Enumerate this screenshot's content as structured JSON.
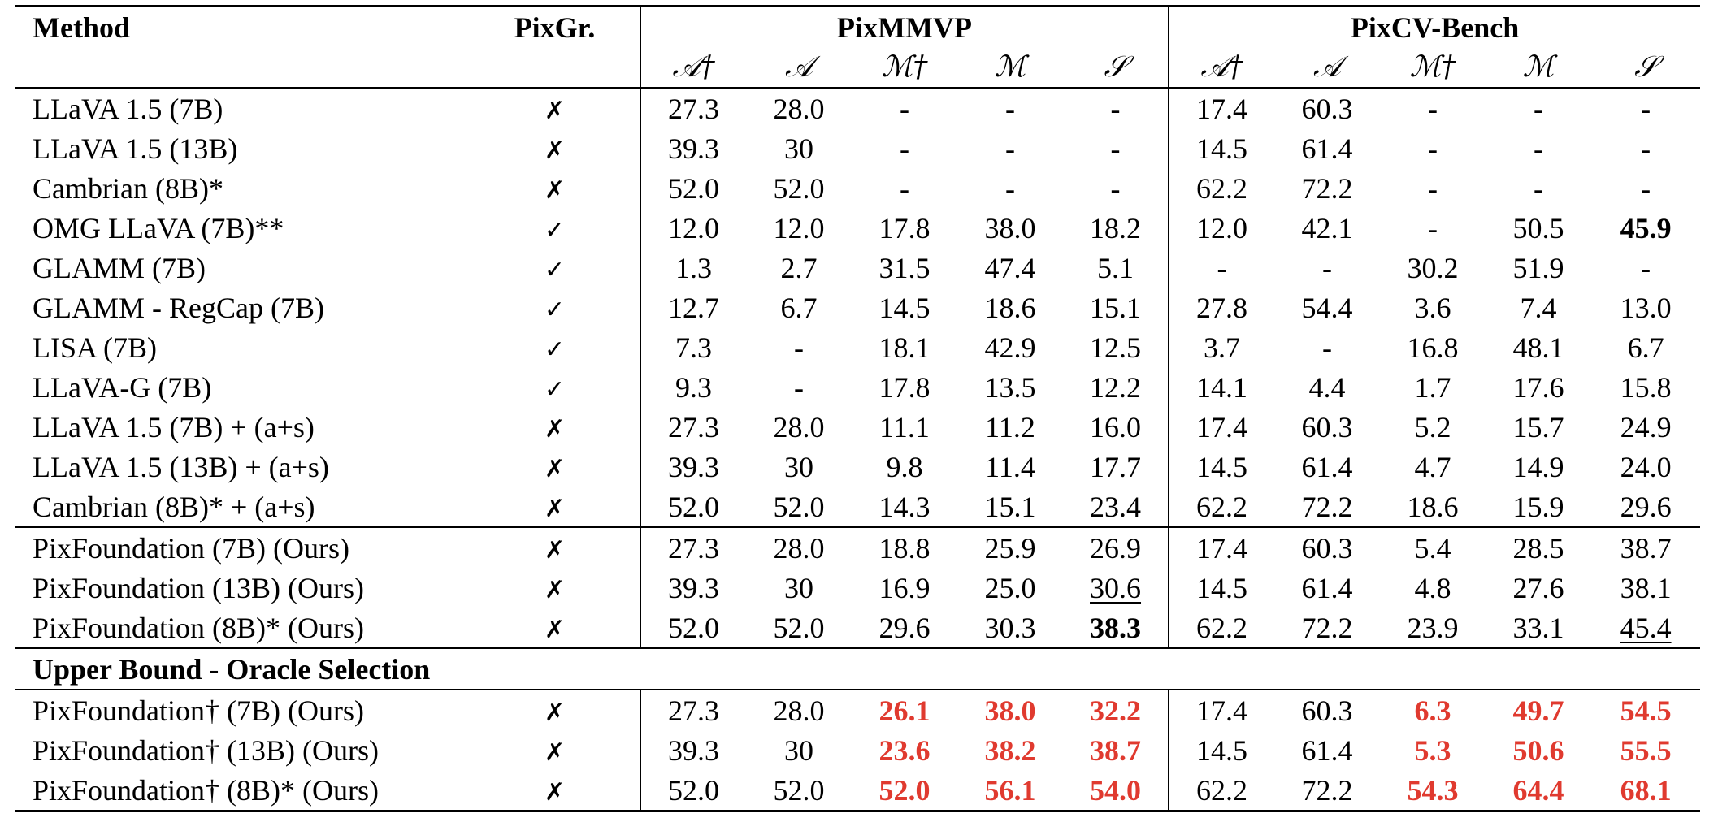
{
  "table": {
    "headers": {
      "method": "Method",
      "pixgr": "PixGr.",
      "group1": "PixMMVP",
      "group2": "PixCV-Bench",
      "metrics": [
        "𝒜†",
        "𝒜",
        "ℳ†",
        "ℳ",
        "𝒮"
      ]
    },
    "rows_main": [
      {
        "method": "LLaVA 1.5 (7B)",
        "pixgr": "✗",
        "v": [
          "27.3",
          "28.0",
          "-",
          "-",
          "-",
          "17.4",
          "60.3",
          "-",
          "-",
          "-"
        ]
      },
      {
        "method": "LLaVA 1.5 (13B)",
        "pixgr": "✗",
        "v": [
          "39.3",
          "30",
          "-",
          "-",
          "-",
          "14.5",
          "61.4",
          "-",
          "-",
          "-"
        ]
      },
      {
        "method": "Cambrian (8B)*",
        "pixgr": "✗",
        "v": [
          "52.0",
          "52.0",
          "-",
          "-",
          "-",
          "62.2",
          "72.2",
          "-",
          "-",
          "-"
        ]
      },
      {
        "method": "OMG LLaVA (7B)**",
        "pixgr": "✓",
        "v": [
          "12.0",
          "12.0",
          "17.8",
          "38.0",
          "18.2",
          "12.0",
          "42.1",
          "-",
          "50.5",
          "45.9"
        ]
      },
      {
        "method": "GLAMM (7B)",
        "pixgr": "✓",
        "v": [
          "1.3",
          "2.7",
          "31.5",
          "47.4",
          "5.1",
          "-",
          "-",
          "30.2",
          "51.9",
          "-"
        ]
      },
      {
        "method": "GLAMM - RegCap (7B)",
        "pixgr": "✓",
        "v": [
          "12.7",
          "6.7",
          "14.5",
          "18.6",
          "15.1",
          "27.8",
          "54.4",
          "3.6",
          "7.4",
          "13.0"
        ]
      },
      {
        "method": "LISA (7B)",
        "pixgr": "✓",
        "v": [
          "7.3",
          "-",
          "18.1",
          "42.9",
          "12.5",
          "3.7",
          "-",
          "16.8",
          "48.1",
          "6.7"
        ]
      },
      {
        "method": "LLaVA-G (7B)",
        "pixgr": "✓",
        "v": [
          "9.3",
          "-",
          "17.8",
          "13.5",
          "12.2",
          "14.1",
          "4.4",
          "1.7",
          "17.6",
          "15.8"
        ]
      },
      {
        "method": "LLaVA 1.5 (7B) + (a+s)",
        "pixgr": "✗",
        "v": [
          "27.3",
          "28.0",
          "11.1",
          "11.2",
          "16.0",
          "17.4",
          "60.3",
          "5.2",
          "15.7",
          "24.9"
        ]
      },
      {
        "method": "LLaVA 1.5 (13B) + (a+s)",
        "pixgr": "✗",
        "v": [
          "39.3",
          "30",
          "9.8",
          "11.4",
          "17.7",
          "14.5",
          "61.4",
          "4.7",
          "14.9",
          "24.0"
        ]
      },
      {
        "method": "Cambrian (8B)* + (a+s)",
        "pixgr": "✗",
        "v": [
          "52.0",
          "52.0",
          "14.3",
          "15.1",
          "23.4",
          "62.2",
          "72.2",
          "18.6",
          "15.9",
          "29.6"
        ]
      }
    ],
    "rows_ours": [
      {
        "method": "PixFoundation (7B) (Ours)",
        "pixgr": "✗",
        "v": [
          "27.3",
          "28.0",
          "18.8",
          "25.9",
          "26.9",
          "17.4",
          "60.3",
          "5.4",
          "28.5",
          "38.7"
        ]
      },
      {
        "method": "PixFoundation (13B) (Ours)",
        "pixgr": "✗",
        "v": [
          "39.3",
          "30",
          "16.9",
          "25.0",
          "30.6",
          "14.5",
          "61.4",
          "4.8",
          "27.6",
          "38.1"
        ]
      },
      {
        "method": "PixFoundation (8B)* (Ours)",
        "pixgr": "✗",
        "v": [
          "52.0",
          "52.0",
          "29.6",
          "30.3",
          "38.3",
          "62.2",
          "72.2",
          "23.9",
          "33.1",
          "45.4"
        ]
      }
    ],
    "section_title": "Upper Bound - Oracle Selection",
    "rows_oracle": [
      {
        "method": "PixFoundation† (7B) (Ours)",
        "pixgr": "✗",
        "v": [
          "27.3",
          "28.0",
          "26.1",
          "38.0",
          "32.2",
          "17.4",
          "60.3",
          "6.3",
          "49.7",
          "54.5"
        ]
      },
      {
        "method": "PixFoundation† (13B) (Ours)",
        "pixgr": "✗",
        "v": [
          "39.3",
          "30",
          "23.6",
          "38.2",
          "38.7",
          "14.5",
          "61.4",
          "5.3",
          "50.6",
          "55.5"
        ]
      },
      {
        "method": "PixFoundation† (8B)* (Ours)",
        "pixgr": "✗",
        "v": [
          "52.0",
          "52.0",
          "52.0",
          "56.1",
          "54.0",
          "62.2",
          "72.2",
          "54.3",
          "64.4",
          "68.1"
        ]
      }
    ],
    "emphasis": {
      "highlight_color": "#e03a2f",
      "bold_cells": [
        [
          "rows_main",
          3,
          9
        ],
        [
          "rows_ours",
          2,
          4
        ]
      ],
      "underlined_cells": [
        [
          "rows_ours",
          1,
          4
        ],
        [
          "rows_ours",
          2,
          9
        ]
      ],
      "red_bold_columns_in_oracle": [
        2,
        3,
        4,
        7,
        8,
        9
      ]
    }
  }
}
